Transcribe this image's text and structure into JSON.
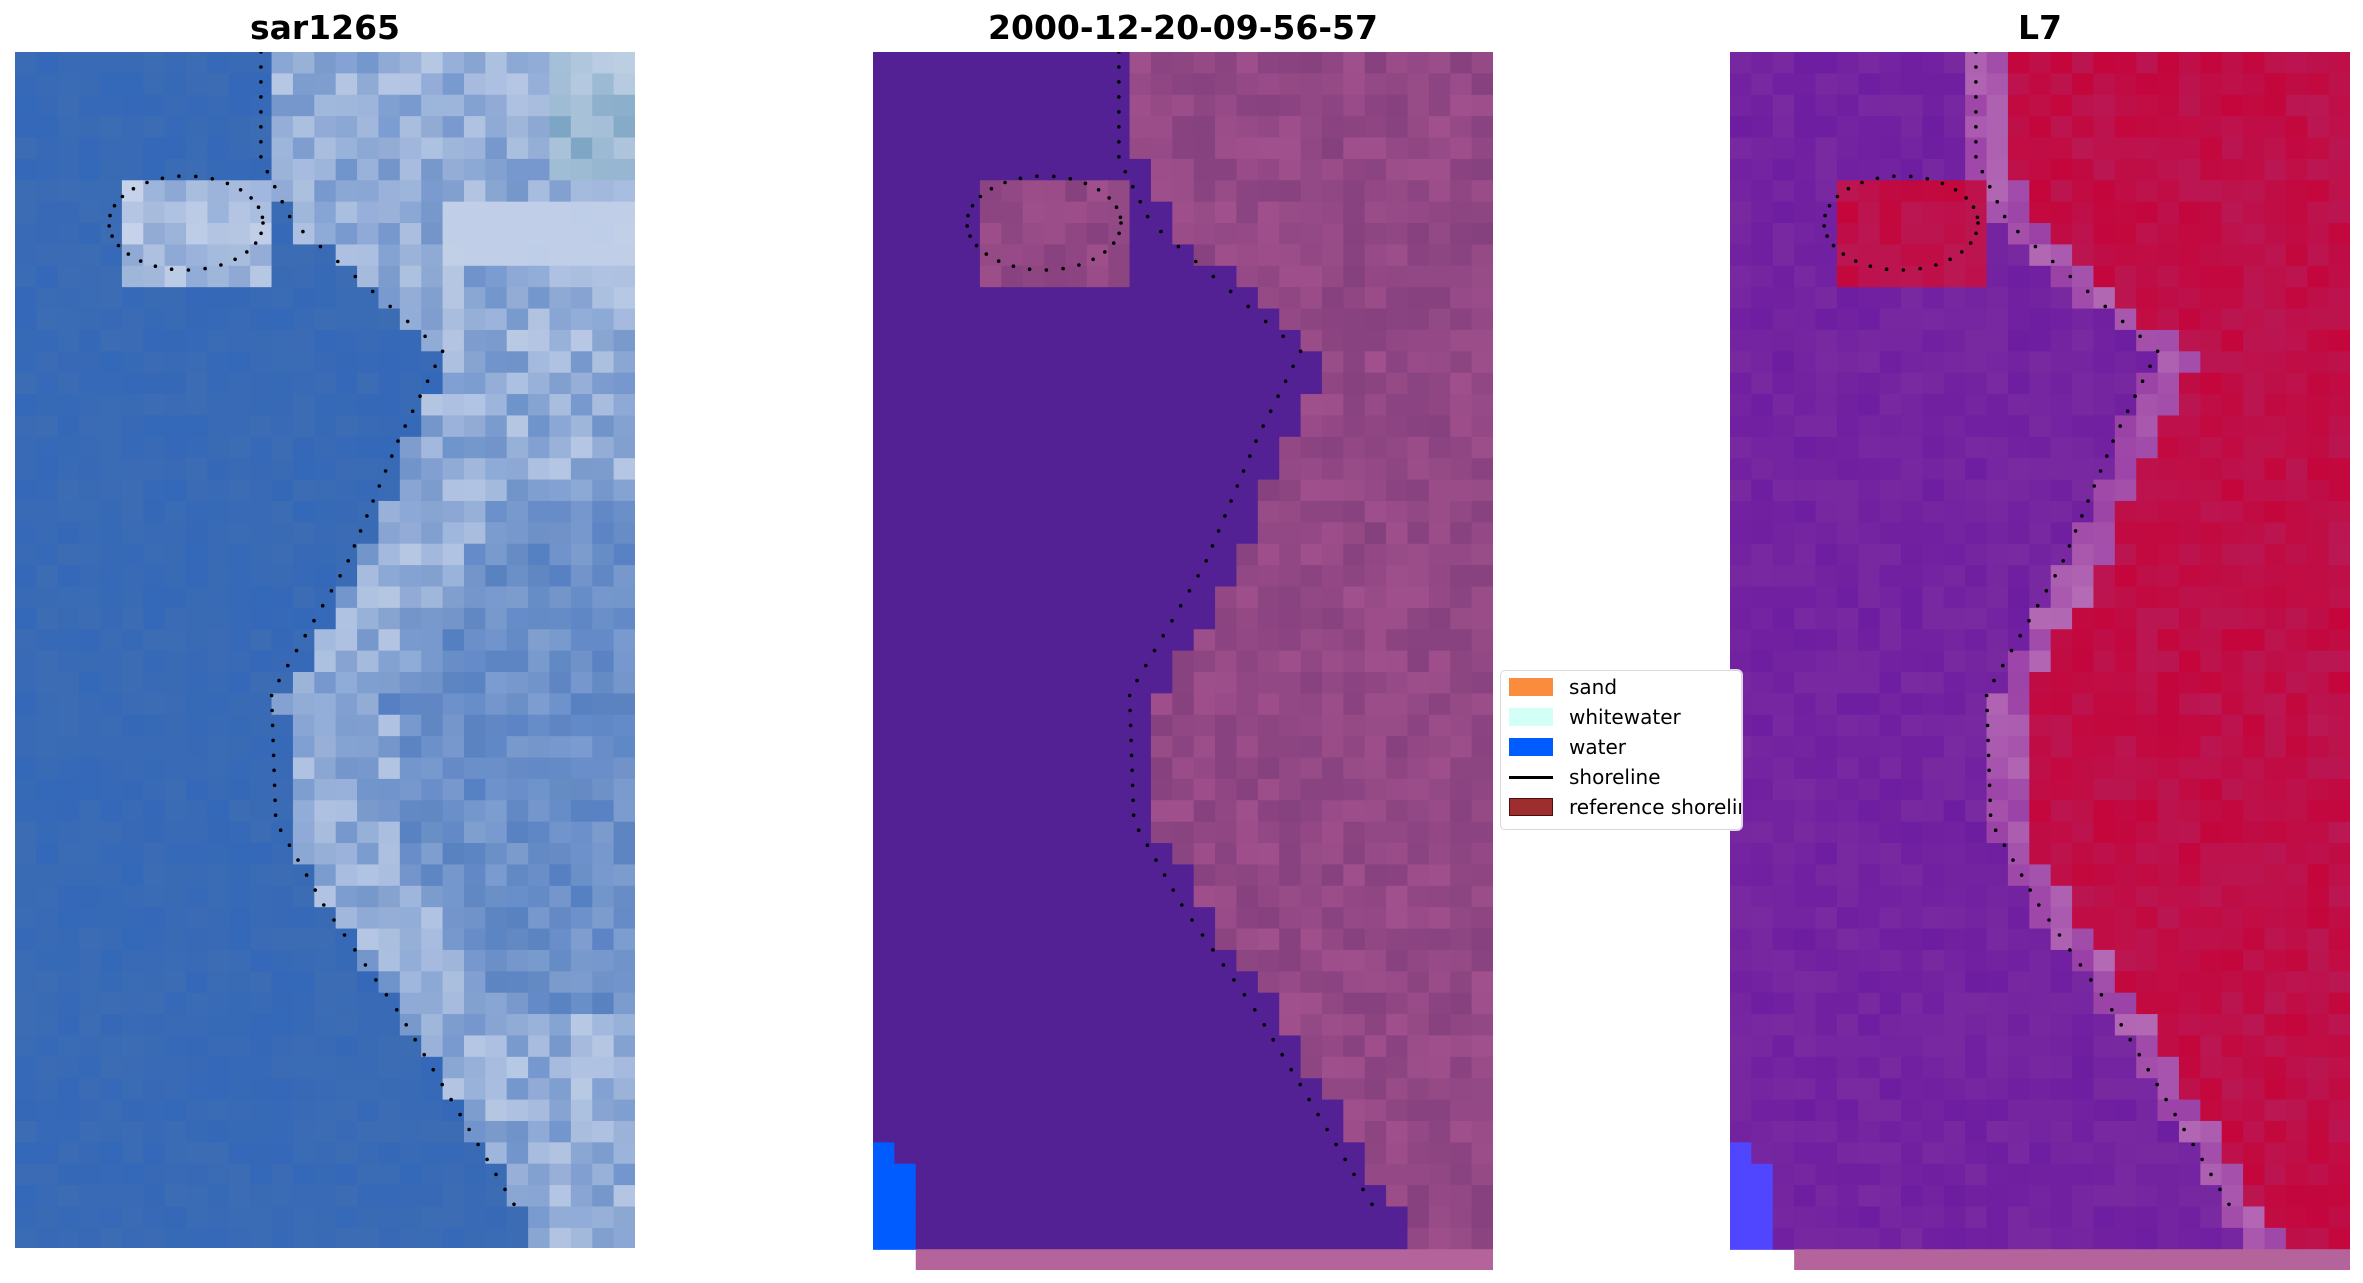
{
  "figure": {
    "panels": [
      {
        "title": "sar1265"
      },
      {
        "title": "2000-12-20-09-56-57"
      },
      {
        "title": "L7"
      }
    ],
    "legend": {
      "items": [
        {
          "label": "sand",
          "kind": "patch",
          "color": "#f98c3d"
        },
        {
          "label": "whitewater",
          "kind": "patch",
          "color": "#d2fff6"
        },
        {
          "label": "water",
          "kind": "patch",
          "color": "#005cff"
        },
        {
          "label": "shoreline",
          "kind": "line",
          "color": "#000000"
        },
        {
          "label": "reference shoreline",
          "kind": "patch",
          "color": "#9e2e2e"
        }
      ]
    },
    "colors": {
      "rgb_water": "#3c6cb4",
      "rgb_foam": "#d8e0f0",
      "classified_water_mask": "#532194",
      "classified_land": "#a0508c",
      "classified_water_class": "#005cff",
      "classified_bottom_strip": "#b4649a",
      "index_low": "#7a2aa0",
      "index_high": "#c4063c",
      "shoreline_dots": "#000000"
    }
  }
}
